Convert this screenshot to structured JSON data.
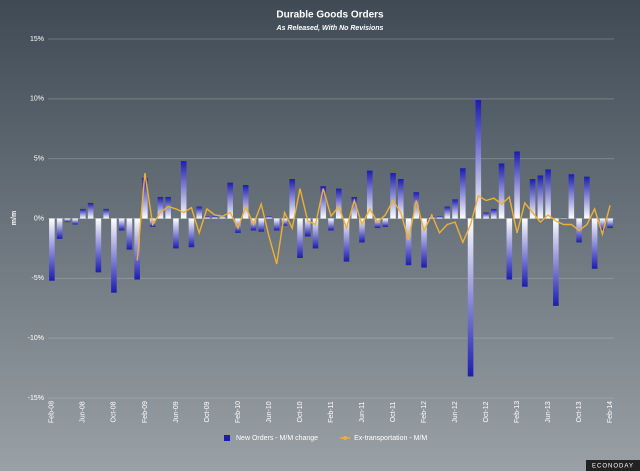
{
  "chart_data": {
    "type": "bar_line",
    "title": "Durable Goods Orders",
    "subtitle": "As Released, With No Revisions",
    "y_axis_label": "m/m",
    "watermark": "ECONODAY",
    "categories": [
      "Feb-08",
      null,
      null,
      null,
      "Jun-08",
      null,
      null,
      null,
      "Oct-08",
      null,
      null,
      null,
      "Feb-09",
      null,
      null,
      null,
      "Jun-09",
      null,
      null,
      null,
      "Oct-09",
      null,
      null,
      null,
      "Feb-10",
      null,
      null,
      null,
      "Jun-10",
      null,
      null,
      null,
      "Oct-10",
      null,
      null,
      null,
      "Feb-11",
      null,
      null,
      null,
      "Jun-11",
      null,
      null,
      null,
      "Oct-11",
      null,
      null,
      null,
      "Feb-12",
      null,
      null,
      null,
      "Jun-12",
      null,
      null,
      null,
      "Oct-12",
      null,
      null,
      null,
      "Feb-13",
      null,
      null,
      null,
      "Jun-13",
      null,
      null,
      null,
      "Oct-13",
      null,
      null,
      null,
      "Feb-14"
    ],
    "series": [
      {
        "name": "New Orders - M/M change",
        "kind": "bar",
        "color": "#1c1cb0",
        "values": [
          -5.2,
          -1.7,
          -0.3,
          -0.5,
          0.8,
          1.3,
          -4.5,
          0.8,
          -6.2,
          -1.0,
          -2.6,
          -5.1,
          3.4,
          -0.7,
          1.8,
          1.8,
          -2.5,
          4.8,
          -2.4,
          1.0,
          0.2,
          0.2,
          0.3,
          3.0,
          -1.2,
          2.8,
          -1.0,
          -1.1,
          0.2,
          -1.0,
          -0.6,
          3.3,
          -3.3,
          -1.5,
          -2.5,
          2.7,
          -1.0,
          2.5,
          -3.6,
          1.8,
          -2.0,
          4.0,
          -0.8,
          -0.7,
          3.8,
          3.3,
          -3.9,
          2.2,
          -4.1,
          0.2,
          0.2,
          1.0,
          1.6,
          4.2,
          -13.2,
          9.9,
          0.5,
          0.8,
          4.6,
          -5.1,
          5.6,
          -5.7,
          3.3,
          3.6,
          4.1,
          -7.3,
          0.1,
          3.7,
          -2.0,
          3.5,
          -4.2,
          -1.0,
          -0.8
        ]
      },
      {
        "name": "Ex-transportation - M/M",
        "kind": "line",
        "color": "#f0b030",
        "values": [
          null,
          null,
          null,
          null,
          null,
          null,
          null,
          null,
          null,
          null,
          null,
          -3.5,
          3.8,
          -0.5,
          0.5,
          1.0,
          0.8,
          0.5,
          0.9,
          -1.2,
          0.8,
          0.3,
          0.2,
          0.5,
          -0.8,
          1.0,
          -0.5,
          1.2,
          -1.5,
          -3.8,
          0.5,
          -0.8,
          2.5,
          -0.2,
          -0.5,
          2.5,
          0.2,
          1.0,
          -0.8,
          1.5,
          -0.5,
          0.8,
          -0.3,
          0.3,
          1.5,
          0.5,
          -1.8,
          1.5,
          -1.0,
          0.3,
          -1.2,
          -0.5,
          -0.3,
          -2.0,
          -0.5,
          1.9,
          1.5,
          1.7,
          1.2,
          1.8,
          -1.2,
          1.3,
          0.5,
          -0.3,
          0.3,
          -0.2,
          -0.5,
          -0.5,
          -1.0,
          -0.5,
          0.8,
          -1.3,
          1.1
        ]
      }
    ],
    "ylim": [
      -15,
      15
    ],
    "yticks": [
      {
        "value": -15,
        "label": "-15%"
      },
      {
        "value": -10,
        "label": "-10%"
      },
      {
        "value": -5,
        "label": "-5%"
      },
      {
        "value": 0,
        "label": "0%"
      },
      {
        "value": 5,
        "label": "5%"
      },
      {
        "value": 10,
        "label": "10%"
      },
      {
        "value": 15,
        "label": "15%"
      }
    ],
    "grid": true,
    "legend": "bottom"
  }
}
